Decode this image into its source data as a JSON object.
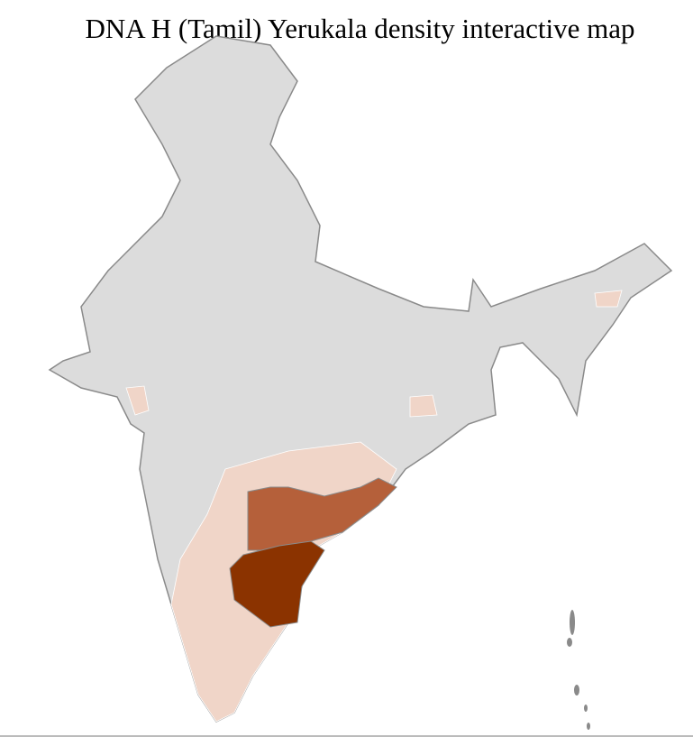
{
  "title": "DNA H (Tamil) Yerukala density interactive map",
  "colors": {
    "no_data": "#dcdcdc",
    "low": "#f0d5c8",
    "medium": "#b5603a",
    "high": "#8b3300",
    "district_border": "#ffffff",
    "state_border": "#8a8a8a"
  }
}
